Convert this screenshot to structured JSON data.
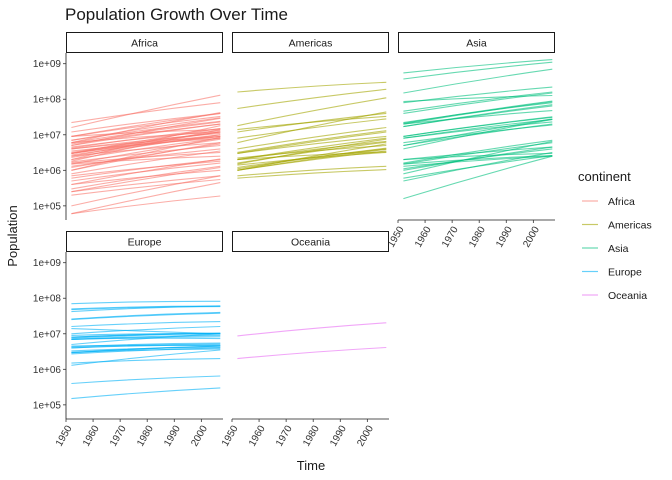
{
  "chart_data": {
    "type": "line",
    "title": "Population Growth Over Time",
    "xlabel": "Time",
    "ylabel": "Population",
    "y_scale": "log10",
    "ylim": [
      40000,
      2000000000
    ],
    "xlim": [
      1950,
      2008
    ],
    "x_ticks": [
      1950,
      1960,
      1970,
      1980,
      1990,
      2000
    ],
    "y_ticks": [
      {
        "value": 100000,
        "label": "1e+05"
      },
      {
        "value": 1000000,
        "label": "1e+06"
      },
      {
        "value": 10000000,
        "label": "1e+07"
      },
      {
        "value": 100000000,
        "label": "1e+08"
      },
      {
        "value": 1000000000,
        "label": "1e+09"
      }
    ],
    "x": [
      1952,
      2007
    ],
    "legend": {
      "title": "continent",
      "entries": [
        {
          "name": "Africa",
          "color": "#F8766D"
        },
        {
          "name": "Americas",
          "color": "#A3A500"
        },
        {
          "name": "Asia",
          "color": "#00BF7D"
        },
        {
          "name": "Europe",
          "color": "#00B0F6"
        },
        {
          "name": "Oceania",
          "color": "#E76BF3"
        }
      ]
    },
    "facets": [
      {
        "name": "Africa",
        "color": "#F8766D",
        "series": [
          [
            9000000,
            33000000
          ],
          [
            6000000,
            12000000
          ],
          [
            4000000,
            11000000
          ],
          [
            7000000,
            24000000
          ],
          [
            1000000,
            8500000
          ],
          [
            9000000,
            14000000
          ],
          [
            1500000,
            2500000
          ],
          [
            2500000,
            6000000
          ],
          [
            3000000,
            12000000
          ],
          [
            250000,
            700000
          ],
          [
            22000000,
            80000000
          ],
          [
            500000,
            1600000
          ],
          [
            60000,
            190000
          ],
          [
            5000000,
            20000000
          ],
          [
            3000000,
            15000000
          ],
          [
            1300000,
            4000000
          ],
          [
            2000000,
            18000000
          ],
          [
            1600000,
            3200000
          ],
          [
            6000000,
            23000000
          ],
          [
            2300000,
            10000000
          ],
          [
            2500000,
            12000000
          ],
          [
            800000,
            3500000
          ],
          [
            1500000,
            7500000
          ],
          [
            4500000,
            13000000
          ],
          [
            12000000,
            40000000
          ],
          [
            3000000,
            10000000
          ],
          [
            5500000,
            20000000
          ],
          [
            7000000,
            30000000
          ],
          [
            4000000,
            9000000
          ],
          [
            300000,
            1300000
          ],
          [
            3500000,
            8000000
          ],
          [
            1200000,
            5500000
          ],
          [
            2000000,
            8000000
          ],
          [
            700000,
            1800000
          ],
          [
            4200000,
            15000000
          ],
          [
            100000,
            700000
          ],
          [
            16000000,
            130000000
          ],
          [
            1000000,
            6000000
          ],
          [
            2700000,
            9000000
          ],
          [
            200000,
            550000
          ],
          [
            3200000,
            12000000
          ],
          [
            400000,
            1000000
          ],
          [
            1700000,
            5000000
          ],
          [
            60000,
            450000
          ],
          [
            1800000,
            14000000
          ],
          [
            9000000,
            40000000
          ],
          [
            600000,
            2000000
          ],
          [
            250000,
            1200000
          ],
          [
            3000000,
            9000000
          ],
          [
            5000000,
            29000000
          ],
          [
            6000000,
            42000000
          ],
          [
            400000,
            2100000
          ]
        ]
      },
      {
        "name": "Americas",
        "color": "#A3A500",
        "series": [
          [
            160000000,
            300000000
          ],
          [
            55000000,
            190000000
          ],
          [
            18000000,
            110000000
          ],
          [
            14000000,
            33000000
          ],
          [
            12000000,
            40000000
          ],
          [
            6000000,
            44000000
          ],
          [
            8000000,
            28000000
          ],
          [
            4000000,
            16000000
          ],
          [
            3000000,
            12000000
          ],
          [
            2000000,
            6500000
          ],
          [
            3000000,
            9000000
          ],
          [
            3200000,
            13000000
          ],
          [
            2000000,
            8000000
          ],
          [
            1500000,
            7500000
          ],
          [
            1000000,
            5500000
          ],
          [
            2200000,
            5000000
          ],
          [
            1200000,
            4000000
          ],
          [
            1000000,
            3500000
          ],
          [
            2000000,
            3300000
          ],
          [
            1000000,
            3900000
          ],
          [
            1400000,
            3200000
          ],
          [
            700000,
            1300000
          ],
          [
            600000,
            1050000
          ],
          [
            1600000,
            6200000
          ],
          [
            1100000,
            4200000
          ]
        ]
      },
      {
        "name": "Asia",
        "color": "#00BF7D",
        "series": [
          [
            550000000,
            1300000000
          ],
          [
            370000000,
            1100000000
          ],
          [
            80000000,
            220000000
          ],
          [
            86000000,
            127000000
          ],
          [
            46000000,
            160000000
          ],
          [
            40000000,
            150000000
          ],
          [
            20000000,
            85000000
          ],
          [
            21000000,
            89000000
          ],
          [
            17000000,
            65000000
          ],
          [
            22000000,
            80000000
          ],
          [
            20000000,
            48000000
          ],
          [
            17000000,
            70000000
          ],
          [
            9000000,
            31000000
          ],
          [
            8000000,
            23000000
          ],
          [
            5000000,
            28000000
          ],
          [
            8000000,
            27000000
          ],
          [
            9000000,
            32000000
          ],
          [
            4000000,
            27000000
          ],
          [
            6000000,
            19000000
          ],
          [
            5000000,
            20000000
          ],
          [
            1600000,
            7000000
          ],
          [
            2000000,
            4500000
          ],
          [
            1500000,
            6000000
          ],
          [
            2000000,
            3000000
          ],
          [
            1000000,
            4500000
          ],
          [
            800000,
            6500000
          ],
          [
            1300000,
            2500000
          ],
          [
            1500000,
            2600000
          ],
          [
            500000,
            3200000
          ],
          [
            600000,
            2600000
          ],
          [
            150000000,
            700000000
          ],
          [
            1100000,
            4000000
          ],
          [
            160000,
            2500000
          ]
        ]
      },
      {
        "name": "Europe",
        "color": "#00B0F6",
        "series": [
          [
            70000000,
            82000000
          ],
          [
            50000000,
            60000000
          ],
          [
            48000000,
            58000000
          ],
          [
            42000000,
            61000000
          ],
          [
            26000000,
            40000000
          ],
          [
            25000000,
            38000000
          ],
          [
            16000000,
            22000000
          ],
          [
            14000000,
            10000000
          ],
          [
            10000000,
            16000000
          ],
          [
            9000000,
            10000000
          ],
          [
            8000000,
            10500000
          ],
          [
            7000000,
            9000000
          ],
          [
            8000000,
            10000000
          ],
          [
            7500000,
            10300000
          ],
          [
            6900000,
            8200000
          ],
          [
            7000000,
            7300000
          ],
          [
            5000000,
            10000000
          ],
          [
            4500000,
            4600000
          ],
          [
            4300000,
            5500000
          ],
          [
            4000000,
            5200000
          ],
          [
            3300000,
            4100000
          ],
          [
            3000000,
            3700000
          ],
          [
            3000000,
            4500000
          ],
          [
            2900000,
            4500000
          ],
          [
            2700000,
            4000000
          ],
          [
            1500000,
            2000000
          ],
          [
            1300000,
            3500000
          ],
          [
            400000,
            650000
          ],
          [
            150000,
            300000
          ],
          [
            4000000,
            4800000
          ]
        ]
      },
      {
        "name": "Oceania",
        "color": "#E76BF3",
        "series": [
          [
            8700000,
            20400000
          ],
          [
            2000000,
            4100000
          ]
        ]
      }
    ]
  }
}
